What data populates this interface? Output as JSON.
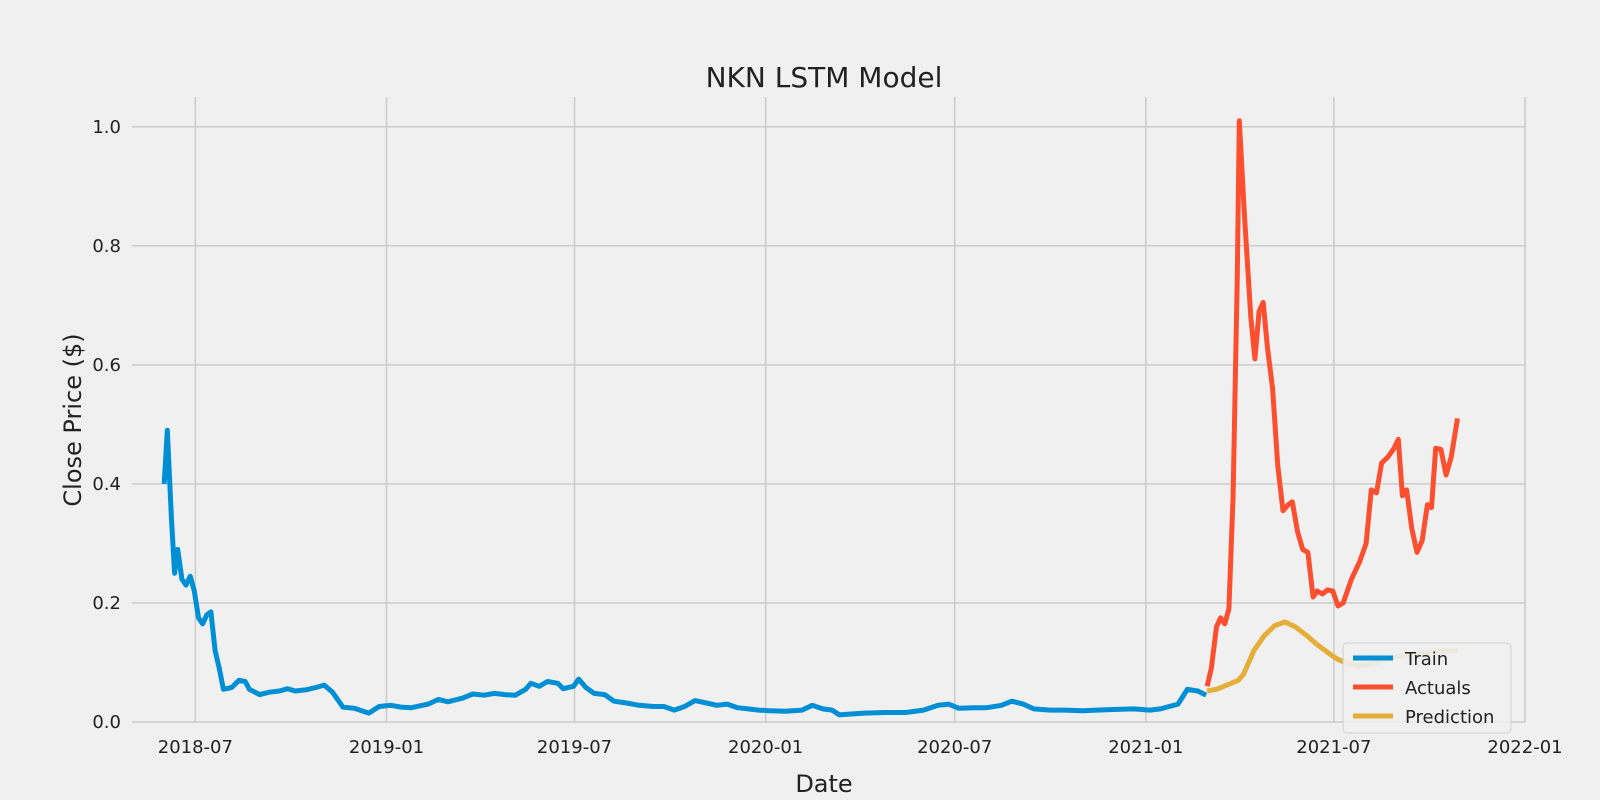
{
  "chart_data": {
    "type": "line",
    "title": "NKN LSTM Model",
    "xlabel": "Date",
    "ylabel": "Close Price ($)",
    "x_ticks": [
      "2018-07",
      "2019-01",
      "2019-07",
      "2020-01",
      "2020-07",
      "2021-01",
      "2021-07",
      "2022-01"
    ],
    "y_ticks": [
      "0.0",
      "0.2",
      "0.4",
      "0.6",
      "0.8",
      "1.0"
    ],
    "xlim": [
      "2018-05-01",
      "2022-01-01"
    ],
    "ylim": [
      0,
      1.05
    ],
    "grid": true,
    "legend_position": "lower-right",
    "series": [
      {
        "name": "Train",
        "color": "#008fd5",
        "points": [
          [
            "2018-06-01",
            0.4
          ],
          [
            "2018-06-04",
            0.49
          ],
          [
            "2018-06-08",
            0.34
          ],
          [
            "2018-06-11",
            0.25
          ],
          [
            "2018-06-14",
            0.29
          ],
          [
            "2018-06-18",
            0.24
          ],
          [
            "2018-06-22",
            0.23
          ],
          [
            "2018-06-26",
            0.245
          ],
          [
            "2018-06-30",
            0.22
          ],
          [
            "2018-07-04",
            0.175
          ],
          [
            "2018-07-08",
            0.165
          ],
          [
            "2018-07-12",
            0.18
          ],
          [
            "2018-07-16",
            0.185
          ],
          [
            "2018-07-20",
            0.12
          ],
          [
            "2018-07-24",
            0.09
          ],
          [
            "2018-07-28",
            0.055
          ],
          [
            "2018-08-05",
            0.058
          ],
          [
            "2018-08-12",
            0.07
          ],
          [
            "2018-08-18",
            0.068
          ],
          [
            "2018-08-22",
            0.055
          ],
          [
            "2018-09-01",
            0.046
          ],
          [
            "2018-09-10",
            0.05
          ],
          [
            "2018-09-20",
            0.052
          ],
          [
            "2018-09-28",
            0.056
          ],
          [
            "2018-10-05",
            0.052
          ],
          [
            "2018-10-15",
            0.054
          ],
          [
            "2018-10-25",
            0.058
          ],
          [
            "2018-11-02",
            0.062
          ],
          [
            "2018-11-10",
            0.05
          ],
          [
            "2018-11-20",
            0.025
          ],
          [
            "2018-12-01",
            0.023
          ],
          [
            "2018-12-15",
            0.015
          ],
          [
            "2018-12-25",
            0.026
          ],
          [
            "2019-01-05",
            0.028
          ],
          [
            "2019-01-15",
            0.025
          ],
          [
            "2019-01-25",
            0.024
          ],
          [
            "2019-02-10",
            0.03
          ],
          [
            "2019-02-20",
            0.038
          ],
          [
            "2019-03-01",
            0.034
          ],
          [
            "2019-03-15",
            0.04
          ],
          [
            "2019-03-25",
            0.047
          ],
          [
            "2019-04-05",
            0.045
          ],
          [
            "2019-04-15",
            0.048
          ],
          [
            "2019-04-25",
            0.046
          ],
          [
            "2019-05-05",
            0.045
          ],
          [
            "2019-05-15",
            0.055
          ],
          [
            "2019-05-20",
            0.065
          ],
          [
            "2019-05-28",
            0.06
          ],
          [
            "2019-06-05",
            0.068
          ],
          [
            "2019-06-15",
            0.065
          ],
          [
            "2019-06-20",
            0.056
          ],
          [
            "2019-06-30",
            0.06
          ],
          [
            "2019-07-05",
            0.072
          ],
          [
            "2019-07-12",
            0.058
          ],
          [
            "2019-07-20",
            0.048
          ],
          [
            "2019-07-30",
            0.046
          ],
          [
            "2019-08-08",
            0.035
          ],
          [
            "2019-08-20",
            0.032
          ],
          [
            "2019-09-01",
            0.028
          ],
          [
            "2019-09-15",
            0.026
          ],
          [
            "2019-09-25",
            0.026
          ],
          [
            "2019-10-05",
            0.02
          ],
          [
            "2019-10-15",
            0.026
          ],
          [
            "2019-10-25",
            0.036
          ],
          [
            "2019-11-05",
            0.032
          ],
          [
            "2019-11-15",
            0.028
          ],
          [
            "2019-11-25",
            0.03
          ],
          [
            "2019-12-05",
            0.024
          ],
          [
            "2019-12-15",
            0.022
          ],
          [
            "2019-12-25",
            0.02
          ],
          [
            "2020-01-05",
            0.019
          ],
          [
            "2020-01-20",
            0.018
          ],
          [
            "2020-02-05",
            0.02
          ],
          [
            "2020-02-15",
            0.028
          ],
          [
            "2020-02-25",
            0.022
          ],
          [
            "2020-03-05",
            0.02
          ],
          [
            "2020-03-12",
            0.012
          ],
          [
            "2020-03-20",
            0.013
          ],
          [
            "2020-04-05",
            0.015
          ],
          [
            "2020-04-25",
            0.016
          ],
          [
            "2020-05-15",
            0.016
          ],
          [
            "2020-06-01",
            0.02
          ],
          [
            "2020-06-15",
            0.028
          ],
          [
            "2020-06-25",
            0.03
          ],
          [
            "2020-07-05",
            0.023
          ],
          [
            "2020-07-20",
            0.024
          ],
          [
            "2020-08-01",
            0.024
          ],
          [
            "2020-08-15",
            0.028
          ],
          [
            "2020-08-25",
            0.035
          ],
          [
            "2020-09-05",
            0.03
          ],
          [
            "2020-09-15",
            0.022
          ],
          [
            "2020-10-01",
            0.02
          ],
          [
            "2020-10-15",
            0.02
          ],
          [
            "2020-11-01",
            0.019
          ],
          [
            "2020-11-15",
            0.02
          ],
          [
            "2020-12-01",
            0.021
          ],
          [
            "2020-12-20",
            0.022
          ],
          [
            "2021-01-05",
            0.02
          ],
          [
            "2021-01-15",
            0.022
          ],
          [
            "2021-02-01",
            0.03
          ],
          [
            "2021-02-10",
            0.055
          ],
          [
            "2021-02-20",
            0.052
          ],
          [
            "2021-02-28",
            0.045
          ]
        ]
      },
      {
        "name": "Actuals",
        "color": "#fc4f30",
        "points": [
          [
            "2021-03-01",
            0.06
          ],
          [
            "2021-03-05",
            0.09
          ],
          [
            "2021-03-10",
            0.16
          ],
          [
            "2021-03-14",
            0.175
          ],
          [
            "2021-03-18",
            0.165
          ],
          [
            "2021-03-22",
            0.19
          ],
          [
            "2021-03-26",
            0.38
          ],
          [
            "2021-03-30",
            0.75
          ],
          [
            "2021-04-01",
            1.01
          ],
          [
            "2021-04-06",
            0.85
          ],
          [
            "2021-04-12",
            0.68
          ],
          [
            "2021-04-16",
            0.61
          ],
          [
            "2021-04-20",
            0.69
          ],
          [
            "2021-04-24",
            0.705
          ],
          [
            "2021-04-28",
            0.63
          ],
          [
            "2021-05-03",
            0.56
          ],
          [
            "2021-05-08",
            0.43
          ],
          [
            "2021-05-13",
            0.355
          ],
          [
            "2021-05-18",
            0.365
          ],
          [
            "2021-05-22",
            0.37
          ],
          [
            "2021-05-27",
            0.32
          ],
          [
            "2021-06-01",
            0.29
          ],
          [
            "2021-06-06",
            0.285
          ],
          [
            "2021-06-11",
            0.21
          ],
          [
            "2021-06-15",
            0.22
          ],
          [
            "2021-06-20",
            0.215
          ],
          [
            "2021-06-25",
            0.222
          ],
          [
            "2021-06-30",
            0.22
          ],
          [
            "2021-07-05",
            0.195
          ],
          [
            "2021-07-10",
            0.2
          ],
          [
            "2021-07-18",
            0.24
          ],
          [
            "2021-07-26",
            0.27
          ],
          [
            "2021-08-01",
            0.3
          ],
          [
            "2021-08-06",
            0.39
          ],
          [
            "2021-08-11",
            0.385
          ],
          [
            "2021-08-16",
            0.435
          ],
          [
            "2021-08-22",
            0.445
          ],
          [
            "2021-08-28",
            0.46
          ],
          [
            "2021-09-01",
            0.475
          ],
          [
            "2021-09-05",
            0.38
          ],
          [
            "2021-09-09",
            0.39
          ],
          [
            "2021-09-14",
            0.325
          ],
          [
            "2021-09-19",
            0.285
          ],
          [
            "2021-09-24",
            0.305
          ],
          [
            "2021-09-29",
            0.365
          ],
          [
            "2021-10-03",
            0.36
          ],
          [
            "2021-10-07",
            0.46
          ],
          [
            "2021-10-12",
            0.458
          ],
          [
            "2021-10-17",
            0.415
          ],
          [
            "2021-10-22",
            0.445
          ],
          [
            "2021-10-28",
            0.51
          ]
        ]
      },
      {
        "name": "Prediction",
        "color": "#e5ae38",
        "points": [
          [
            "2021-03-01",
            0.052
          ],
          [
            "2021-03-10",
            0.055
          ],
          [
            "2021-03-20",
            0.062
          ],
          [
            "2021-03-31",
            0.07
          ],
          [
            "2021-04-05",
            0.08
          ],
          [
            "2021-04-15",
            0.12
          ],
          [
            "2021-04-25",
            0.145
          ],
          [
            "2021-05-05",
            0.162
          ],
          [
            "2021-05-15",
            0.168
          ],
          [
            "2021-05-25",
            0.16
          ],
          [
            "2021-06-05",
            0.145
          ],
          [
            "2021-06-15",
            0.13
          ],
          [
            "2021-06-25",
            0.117
          ],
          [
            "2021-07-05",
            0.105
          ],
          [
            "2021-07-15",
            0.098
          ],
          [
            "2021-07-25",
            0.095
          ],
          [
            "2021-08-05",
            0.097
          ],
          [
            "2021-08-20",
            0.105
          ],
          [
            "2021-09-05",
            0.112
          ],
          [
            "2021-09-20",
            0.115
          ],
          [
            "2021-10-05",
            0.118
          ],
          [
            "2021-10-28",
            0.12
          ]
        ]
      }
    ]
  }
}
